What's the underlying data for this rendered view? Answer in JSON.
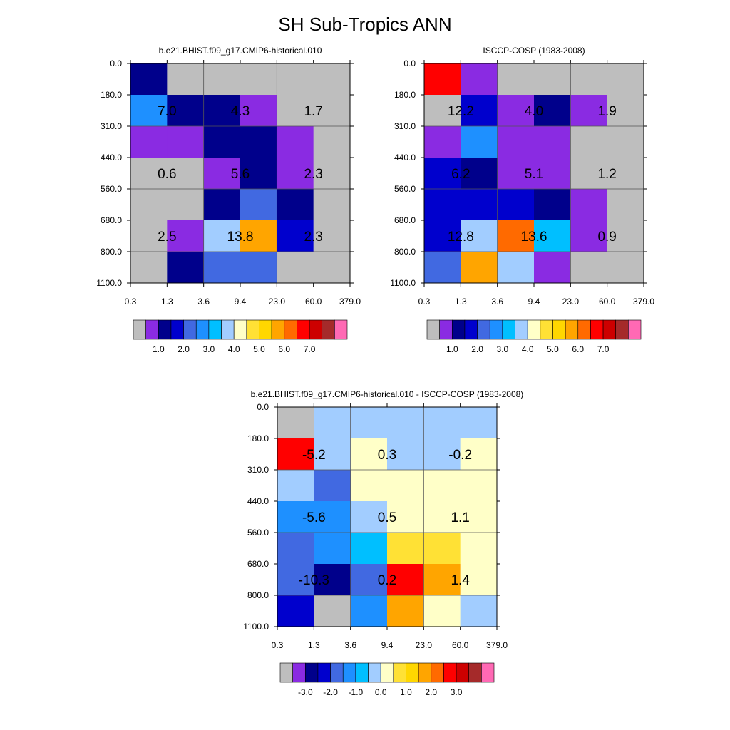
{
  "title": "SH Sub-Tropics ANN",
  "x_tick_labels": [
    "0.3",
    "1.3",
    "3.6",
    "9.4",
    "23.0",
    "60.0",
    "379.0"
  ],
  "y_tick_labels": [
    "0.0",
    "180.0",
    "310.0",
    "440.0",
    "560.0",
    "680.0",
    "800.0",
    "1100.0"
  ],
  "palette": [
    "#bebebe",
    "#8a2be2",
    "#00008b",
    "#0000cd",
    "#4169e1",
    "#1e90ff",
    "#00bfff",
    "#a2cdff",
    "#ffffc8",
    "#ffe135",
    "#ffd700",
    "#ffa500",
    "#ff6a00",
    "#ff0000",
    "#cd0000",
    "#a52a2a",
    "#ff69b4"
  ],
  "chart_data": [
    {
      "type": "heatmap",
      "title": "b.e21.BHIST.f09_g17.CMIP6-historical.010",
      "colorbar_labels": [
        "1.0",
        "2.0",
        "3.0",
        "4.0",
        "5.0",
        "6.0",
        "7.0"
      ],
      "cell_colors": [
        [
          2,
          0,
          0,
          0,
          0,
          0
        ],
        [
          5,
          2,
          2,
          1,
          0,
          0
        ],
        [
          1,
          1,
          2,
          2,
          1,
          0
        ],
        [
          0,
          0,
          1,
          2,
          1,
          0
        ],
        [
          0,
          0,
          2,
          4,
          2,
          0
        ],
        [
          0,
          1,
          7,
          11,
          3,
          0
        ],
        [
          0,
          2,
          4,
          4,
          0,
          0
        ]
      ],
      "annotations": [
        {
          "text": "7.0",
          "x_index": 0,
          "y_index": 0
        },
        {
          "text": "4.3",
          "x_index": 1,
          "y_index": 0
        },
        {
          "text": "1.7",
          "x_index": 2,
          "y_index": 0
        },
        {
          "text": "0.6",
          "x_index": 0,
          "y_index": 1
        },
        {
          "text": "5.6",
          "x_index": 1,
          "y_index": 1
        },
        {
          "text": "2.3",
          "x_index": 2,
          "y_index": 1
        },
        {
          "text": "2.5",
          "x_index": 0,
          "y_index": 2
        },
        {
          "text": "13.8",
          "x_index": 1,
          "y_index": 2
        },
        {
          "text": "2.3",
          "x_index": 2,
          "y_index": 2
        }
      ]
    },
    {
      "type": "heatmap",
      "title": "ISCCP-COSP (1983-2008)",
      "colorbar_labels": [
        "1.0",
        "2.0",
        "3.0",
        "4.0",
        "5.0",
        "6.0",
        "7.0"
      ],
      "cell_colors": [
        [
          13,
          1,
          0,
          0,
          0,
          0
        ],
        [
          0,
          3,
          1,
          2,
          1,
          0
        ],
        [
          1,
          5,
          1,
          1,
          0,
          0
        ],
        [
          3,
          2,
          1,
          1,
          0,
          0
        ],
        [
          3,
          3,
          3,
          2,
          1,
          0
        ],
        [
          3,
          7,
          12,
          6,
          1,
          0
        ],
        [
          4,
          11,
          7,
          1,
          0,
          0
        ]
      ],
      "annotations": [
        {
          "text": "12.2",
          "x_index": 0,
          "y_index": 0
        },
        {
          "text": "4.0",
          "x_index": 1,
          "y_index": 0
        },
        {
          "text": "1.9",
          "x_index": 2,
          "y_index": 0
        },
        {
          "text": "6.2",
          "x_index": 0,
          "y_index": 1
        },
        {
          "text": "5.1",
          "x_index": 1,
          "y_index": 1
        },
        {
          "text": "1.2",
          "x_index": 2,
          "y_index": 1
        },
        {
          "text": "12.8",
          "x_index": 0,
          "y_index": 2
        },
        {
          "text": "13.6",
          "x_index": 1,
          "y_index": 2
        },
        {
          "text": "0.9",
          "x_index": 2,
          "y_index": 2
        }
      ]
    },
    {
      "type": "heatmap",
      "title": "b.e21.BHIST.f09_g17.CMIP6-historical.010 - ISCCP-COSP (1983-2008)",
      "colorbar_labels": [
        "-3.0",
        "-2.0",
        "-1.0",
        "0.0",
        "1.0",
        "2.0",
        "3.0"
      ],
      "cell_colors": [
        [
          0,
          7,
          7,
          7,
          7,
          7
        ],
        [
          13,
          7,
          8,
          7,
          7,
          8
        ],
        [
          7,
          4,
          8,
          8,
          8,
          8
        ],
        [
          5,
          5,
          7,
          8,
          8,
          8
        ],
        [
          4,
          5,
          6,
          9,
          9,
          8
        ],
        [
          4,
          2,
          4,
          13,
          11,
          8
        ],
        [
          3,
          0,
          5,
          11,
          8,
          7
        ]
      ],
      "annotations": [
        {
          "text": "-5.2",
          "x_index": 0,
          "y_index": 0
        },
        {
          "text": "0.3",
          "x_index": 1,
          "y_index": 0
        },
        {
          "text": "-0.2",
          "x_index": 2,
          "y_index": 0
        },
        {
          "text": "-5.6",
          "x_index": 0,
          "y_index": 1
        },
        {
          "text": "0.5",
          "x_index": 1,
          "y_index": 1
        },
        {
          "text": "1.1",
          "x_index": 2,
          "y_index": 1
        },
        {
          "text": "-10.3",
          "x_index": 0,
          "y_index": 2
        },
        {
          "text": "0.2",
          "x_index": 1,
          "y_index": 2
        },
        {
          "text": "1.4",
          "x_index": 2,
          "y_index": 2
        }
      ]
    }
  ]
}
